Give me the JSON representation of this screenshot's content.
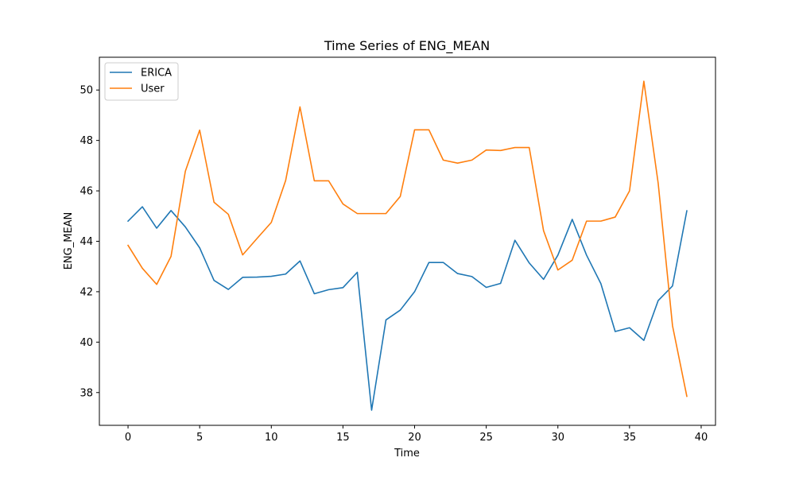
{
  "chart_data": {
    "type": "line",
    "title": "Time Series of ENG_MEAN",
    "xlabel": "Time",
    "ylabel": "ENG_MEAN",
    "xlim": [
      -2,
      41
    ],
    "ylim": [
      36.7,
      51.3
    ],
    "xticks": [
      0,
      5,
      10,
      15,
      20,
      25,
      30,
      35,
      40
    ],
    "yticks": [
      38,
      40,
      42,
      44,
      46,
      48,
      50
    ],
    "grid": false,
    "legend_position": "top-left",
    "x": [
      0,
      1,
      2,
      3,
      4,
      5,
      6,
      7,
      8,
      9,
      10,
      11,
      12,
      13,
      14,
      15,
      16,
      17,
      18,
      19,
      20,
      21,
      22,
      23,
      24,
      25,
      26,
      27,
      28,
      29,
      30,
      31,
      32,
      33,
      34,
      35,
      36,
      37,
      38,
      39
    ],
    "series": [
      {
        "name": "ERICA",
        "color": "#1f77b4",
        "values": [
          44.8,
          45.37,
          44.52,
          45.22,
          44.57,
          43.74,
          42.45,
          42.09,
          42.57,
          42.58,
          42.61,
          42.7,
          43.22,
          41.92,
          42.08,
          42.16,
          42.77,
          37.3,
          40.88,
          41.27,
          42.0,
          43.16,
          43.16,
          42.72,
          42.6,
          42.17,
          42.33,
          44.04,
          43.14,
          42.49,
          43.45,
          44.87,
          43.45,
          42.32,
          40.42,
          40.57,
          40.07,
          41.65,
          42.23,
          45.21
        ]
      },
      {
        "name": "User",
        "color": "#ff7f0e",
        "values": [
          43.84,
          42.93,
          42.29,
          43.4,
          46.78,
          48.41,
          45.55,
          45.07,
          43.46,
          44.11,
          44.75,
          46.41,
          49.33,
          46.4,
          46.4,
          45.48,
          45.1,
          45.1,
          45.1,
          45.78,
          48.42,
          48.42,
          47.22,
          47.1,
          47.22,
          47.62,
          47.6,
          47.72,
          47.72,
          44.42,
          42.86,
          43.25,
          44.8,
          44.8,
          44.96,
          46.0,
          50.35,
          46.3,
          40.65,
          37.85
        ]
      }
    ]
  }
}
